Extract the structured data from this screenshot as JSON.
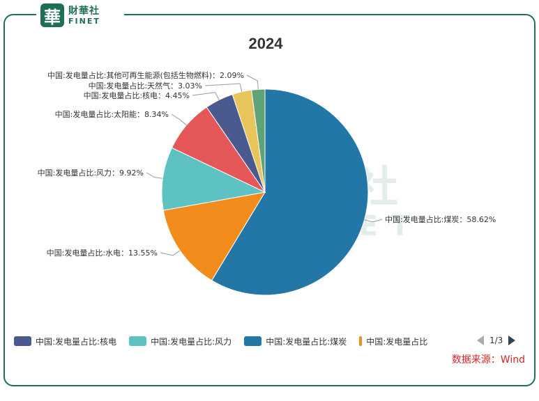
{
  "brand": {
    "mark": "華",
    "name_cn": "財華社",
    "name_en": "FINET"
  },
  "watermark": {
    "text_cn": "財華社",
    "text_en": "FINET"
  },
  "source": "数据来源：Wind",
  "legend_items": [
    {
      "label": "中国:发电量占比:核电",
      "color": "#4a5a8f"
    },
    {
      "label": "中国:发电量占比:风力",
      "color": "#5fc2c2"
    },
    {
      "label": "中国:发电量占比:煤炭",
      "color": "#2377a6"
    },
    {
      "label": "中国:发电量占比",
      "color": "#f28c1c"
    }
  ],
  "pager": {
    "text": "1/3"
  },
  "chart_data": {
    "type": "pie",
    "title": "2024",
    "slices": [
      {
        "name": "中国:发电量占比:煤炭",
        "value": 58.62,
        "label": "中国:发电量占比:煤炭：58.62%",
        "color": "#2377a6"
      },
      {
        "name": "中国:发电量占比:水电",
        "value": 13.55,
        "label": "中国:发电量占比:水电：13.55%",
        "color": "#f28c1c"
      },
      {
        "name": "中国:发电量占比:风力",
        "value": 9.92,
        "label": "中国:发电量占比:风力：9.92%",
        "color": "#5fc2c2"
      },
      {
        "name": "中国:发电量占比:太阳能",
        "value": 8.34,
        "label": "中国:发电量占比:太阳能：8.34%",
        "color": "#e6575a"
      },
      {
        "name": "中国:发电量占比:核电",
        "value": 4.45,
        "label": "中国:发电量占比:核电：4.45%",
        "color": "#4a5a8f"
      },
      {
        "name": "中国:发电量占比:天然气",
        "value": 3.03,
        "label": "中国:发电量占比:天然气：3.03%",
        "color": "#e8c55a"
      },
      {
        "name": "中国:发电量占比:其他可再生能源(包括生物燃料)",
        "value": 2.09,
        "label": "中国:发电量占比:其他可再生能源(包括生物燃料)：2.09%",
        "color": "#5fa377"
      }
    ]
  }
}
